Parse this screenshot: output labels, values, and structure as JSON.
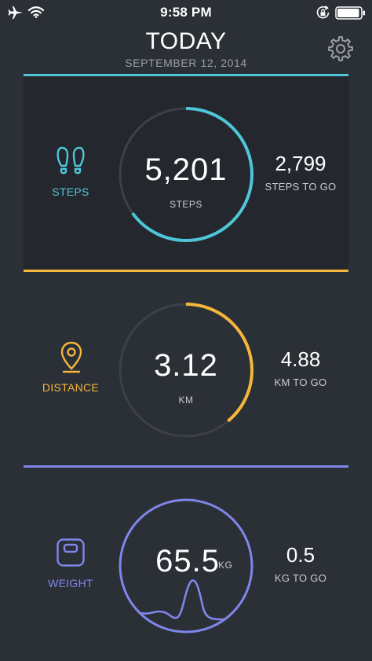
{
  "status_bar": {
    "time": "9:58 PM",
    "icons": [
      "airplane-icon",
      "wifi-icon",
      "rotation-lock-icon",
      "battery-icon"
    ],
    "battery_level": 0.95
  },
  "header": {
    "title": "TODAY",
    "date": "SEPTEMBER 12, 2014",
    "settings_icon": "gear-icon"
  },
  "steps": {
    "label": "STEPS",
    "icon": "footprints-icon",
    "value": "5,201",
    "unit": "STEPS",
    "remaining_value": "2,799",
    "remaining_label": "STEPS TO GO",
    "progress": 0.65,
    "color": "#4fc6d8"
  },
  "distance": {
    "label": "DISTANCE",
    "icon": "location-pin-icon",
    "value": "3.12",
    "unit": "KM",
    "remaining_value": "4.88",
    "remaining_label": "KM TO GO",
    "progress": 0.39,
    "color": "#f5b63c"
  },
  "weight": {
    "label": "WEIGHT",
    "icon": "scale-icon",
    "value": "65.5",
    "unit": "KG",
    "remaining_value": "0.5",
    "remaining_label": "KG TO GO",
    "color": "#7f86ea"
  },
  "colors": {
    "background": "#2b2f36",
    "panel": "#24282e",
    "track": "#3c4048"
  }
}
